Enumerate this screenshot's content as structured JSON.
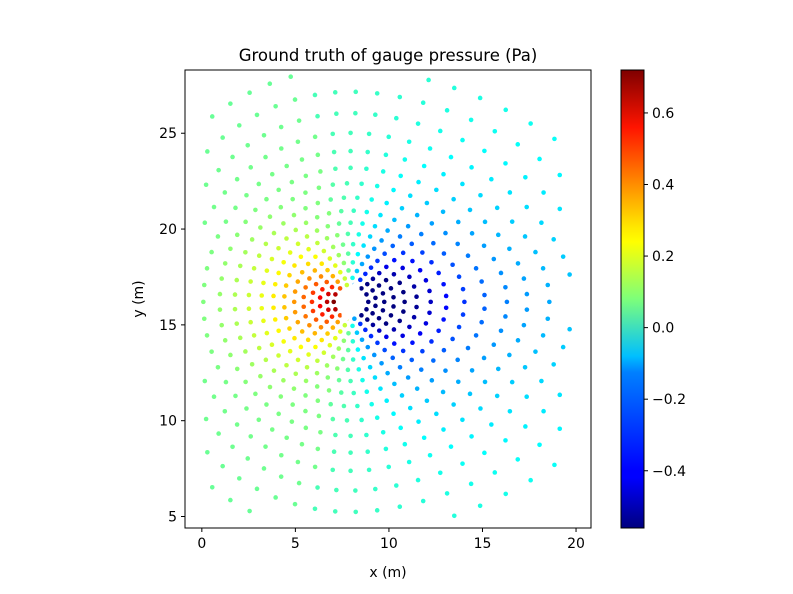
{
  "chart_data": {
    "type": "scatter",
    "title": "Ground truth of gauge pressure (Pa)",
    "xlabel": "x (m)",
    "ylabel": "y (m)",
    "xlim": [
      -0.9,
      20.8
    ],
    "ylim": [
      4.4,
      28.3
    ],
    "xticks": [
      0,
      5,
      10,
      15,
      20
    ],
    "yticks": [
      5,
      10,
      15,
      20,
      25
    ],
    "grid": false,
    "legend": "none",
    "colormap": "jet",
    "colorbar": {
      "range": [
        -0.56,
        0.72
      ],
      "ticks": [
        -0.4,
        -0.2,
        0.0,
        0.2,
        0.4,
        0.6
      ],
      "tick_labels": [
        "−0.4",
        "−0.2",
        "0.0",
        "0.2",
        "0.4",
        "0.6"
      ],
      "location": "right"
    },
    "obstacle": {
      "shape": "ellipse",
      "center": [
        7.95,
        16.2
      ],
      "semi_axes": [
        0.35,
        1.1
      ],
      "tilt_deg": 18
    },
    "field": {
      "description_of_points": "points arranged on rings around the obstacle",
      "freestream_direction": "left-to-right",
      "pressure_near_front": 0.72,
      "pressure_near_back": -0.56,
      "far_field_pressure": 0.0
    }
  }
}
